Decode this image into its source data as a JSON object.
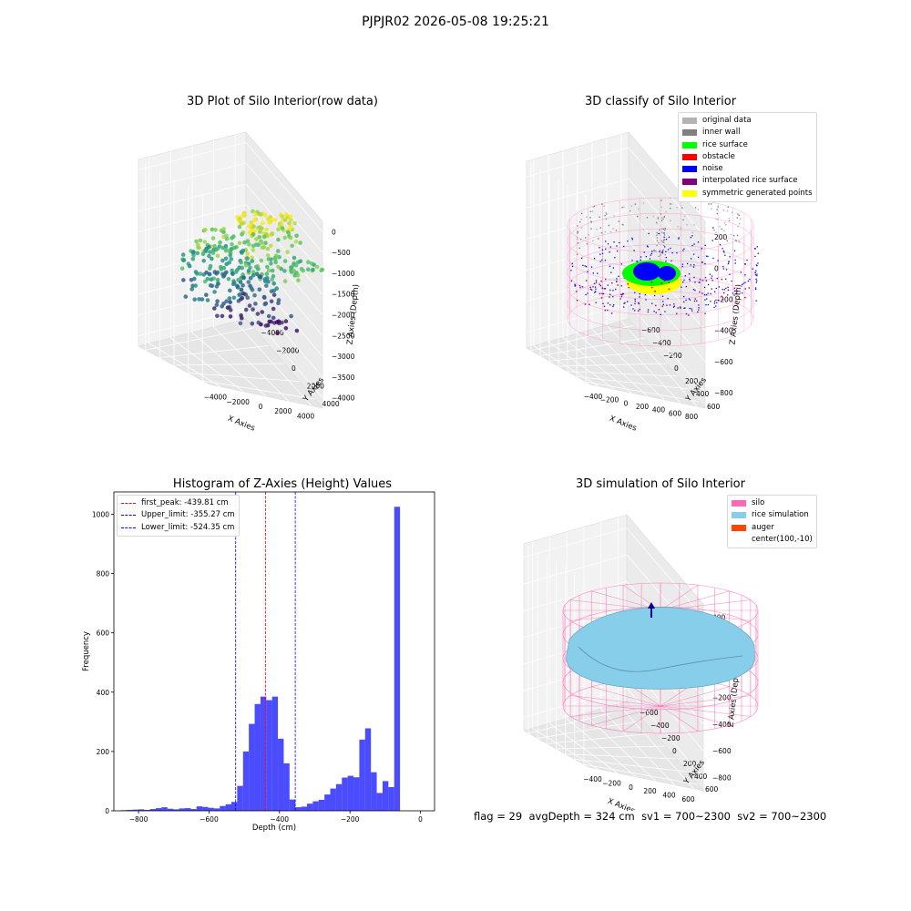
{
  "figure": {
    "suptitle": "PJPJR02 2026-05-08 19:25:21",
    "footer": {
      "flag": "flag = 29",
      "avg_depth": "avgDepth = 324 cm",
      "sv1": "sv1 = 700~2300",
      "sv2": "sv2 = 700~2300"
    }
  },
  "chart_data": [
    {
      "type": "scatter",
      "title": "3D Plot of Silo Interior(row data)",
      "xlabel": "X Axies",
      "ylabel": "Y Axies",
      "zlabel": "Z Axies (Depth)",
      "x_ticks": [
        "−4000",
        "−2000",
        "0",
        "2000",
        "4000"
      ],
      "y_ticks": [
        "−4000",
        "−2000",
        "0",
        "2000",
        "4000"
      ],
      "z_ticks": [
        "−4000",
        "−3500",
        "−3000",
        "−2500",
        "−2000",
        "−1500",
        "−1000",
        "−500",
        "0"
      ],
      "colormap": "viridis"
    },
    {
      "type": "scatter",
      "title": "3D classify of Silo Interior",
      "xlabel": "X Axies",
      "ylabel": "Y Axies",
      "zlabel": "Z Axies (Depth)",
      "x_ticks": [
        "−400",
        "−200",
        "0",
        "200",
        "400",
        "600",
        "800"
      ],
      "y_ticks": [
        "−600",
        "−400",
        "−200",
        "0",
        "200",
        "400",
        "600"
      ],
      "z_ticks": [
        "−800",
        "−600",
        "−400",
        "−200",
        "0",
        "200"
      ],
      "legend": [
        {
          "label": "original data",
          "color": "#b3b3b3"
        },
        {
          "label": "inner wall",
          "color": "#808080"
        },
        {
          "label": "rice surface",
          "color": "#00ff00"
        },
        {
          "label": "obstacle",
          "color": "#ff0000"
        },
        {
          "label": "noise",
          "color": "#0000ff"
        },
        {
          "label": "interpolated rice surface",
          "color": "#800080"
        },
        {
          "label": "symmetric generated points",
          "color": "#ffff00"
        }
      ],
      "legend_loc": "upper right"
    },
    {
      "type": "bar",
      "title": "Histogram of Z-Axies (Height) Values",
      "xlabel": "Depth (cm)",
      "ylabel": "Frequency",
      "xlim": [
        -870,
        40
      ],
      "ylim": [
        0,
        1075
      ],
      "x_ticks": [
        -800,
        -600,
        -400,
        -200,
        0
      ],
      "x_tick_labels": [
        "−800",
        "−600",
        "−400",
        "−200",
        "0"
      ],
      "y_ticks": [
        0,
        200,
        400,
        600,
        800,
        1000
      ],
      "bin_width": 16.5,
      "bin_start": -850,
      "counts": [
        2,
        3,
        4,
        5,
        3,
        6,
        9,
        12,
        7,
        5,
        8,
        9,
        6,
        15,
        13,
        10,
        8,
        16,
        22,
        30,
        84,
        200,
        293,
        360,
        385,
        373,
        385,
        243,
        160,
        38,
        12,
        14,
        24,
        32,
        37,
        55,
        75,
        90,
        112,
        118,
        113,
        240,
        278,
        130,
        60,
        100,
        80,
        1025
      ],
      "bar_color": "#0000ff",
      "bar_alpha": 0.7,
      "vlines": [
        {
          "label": "first_peak: -439.81 cm",
          "x": -439.81,
          "color": "#ff0000"
        },
        {
          "label": "Upper_limit: -355.27 cm",
          "x": -355.27,
          "color": "#0000ff"
        },
        {
          "label": "Lower_limit: -524.35 cm",
          "x": -524.35,
          "color": "#0000ff"
        }
      ],
      "legend_loc": "upper left"
    },
    {
      "type": "surface",
      "title": "3D simulation of Silo Interior",
      "xlabel": "X Axies",
      "ylabel": "Y Axies",
      "zlabel": "Z Axies (Depth)",
      "x_ticks": [
        "−400",
        "−200",
        "0",
        "200",
        "400",
        "600"
      ],
      "y_ticks": [
        "−600",
        "−400",
        "−200",
        "0",
        "200",
        "400",
        "600"
      ],
      "z_ticks": [
        "−800",
        "−600",
        "−400",
        "−200",
        "0",
        "200",
        "400"
      ],
      "legend": [
        {
          "label": "silo",
          "color": "#ff69b4"
        },
        {
          "label": "rice simulation",
          "color": "#87ceeb"
        },
        {
          "label": "auger",
          "color": "#ff4500"
        },
        {
          "label": "center(100,-10)",
          "color": ""
        }
      ],
      "legend_loc": "upper right"
    }
  ]
}
